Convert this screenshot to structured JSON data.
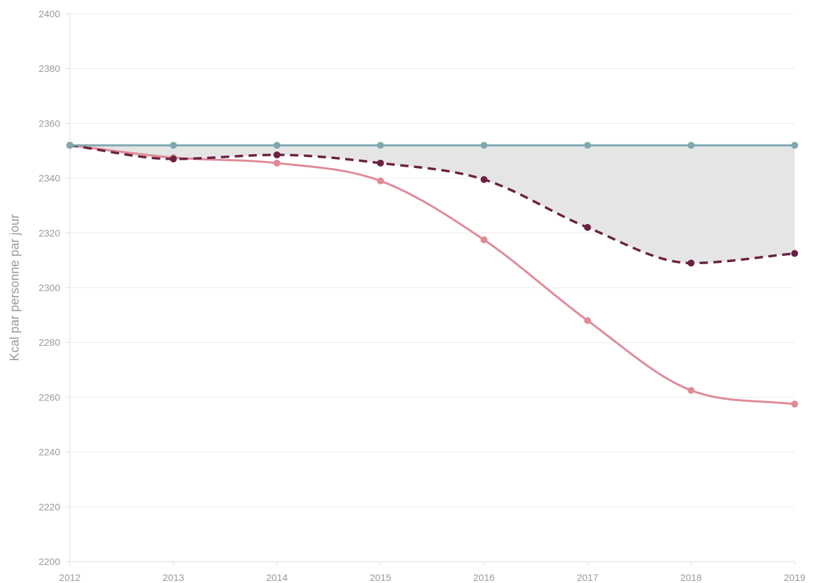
{
  "chart_data": {
    "type": "line",
    "title": "",
    "xlabel": "",
    "ylabel": "Kcal par personne par jour",
    "x": [
      2012,
      2013,
      2014,
      2015,
      2016,
      2017,
      2018,
      2019
    ],
    "x_tick_labels": [
      "2012",
      "2013",
      "2014",
      "2015",
      "2016",
      "2017",
      "2018",
      "2019"
    ],
    "ylim": [
      2200,
      2400
    ],
    "y_ticks": [
      2200,
      2220,
      2240,
      2260,
      2280,
      2300,
      2320,
      2340,
      2360,
      2380,
      2400
    ],
    "y_tick_labels": [
      "2200",
      "2220",
      "2240",
      "2260",
      "2280",
      "2300",
      "2320",
      "2340",
      "2360",
      "2380",
      "2400"
    ],
    "grid": true,
    "legend": "none",
    "shaded_area": {
      "between": [
        "teal",
        "dark"
      ],
      "color": "#e5e5e5"
    },
    "series": [
      {
        "id": "teal",
        "color": "#7fa8b0",
        "dashed": false,
        "values": [
          2352,
          2352,
          2352,
          2352,
          2352,
          2352,
          2352,
          2352
        ]
      },
      {
        "id": "dark",
        "color": "#6b2142",
        "dashed": true,
        "values": [
          2352,
          2347,
          2348.5,
          2345.5,
          2339.5,
          2322,
          2309,
          2312.5
        ]
      },
      {
        "id": "pink",
        "color": "#e08a98",
        "dashed": false,
        "values": [
          2352,
          2347.5,
          2345.5,
          2339,
          2317.5,
          2288,
          2262.5,
          2257.5
        ]
      }
    ]
  }
}
